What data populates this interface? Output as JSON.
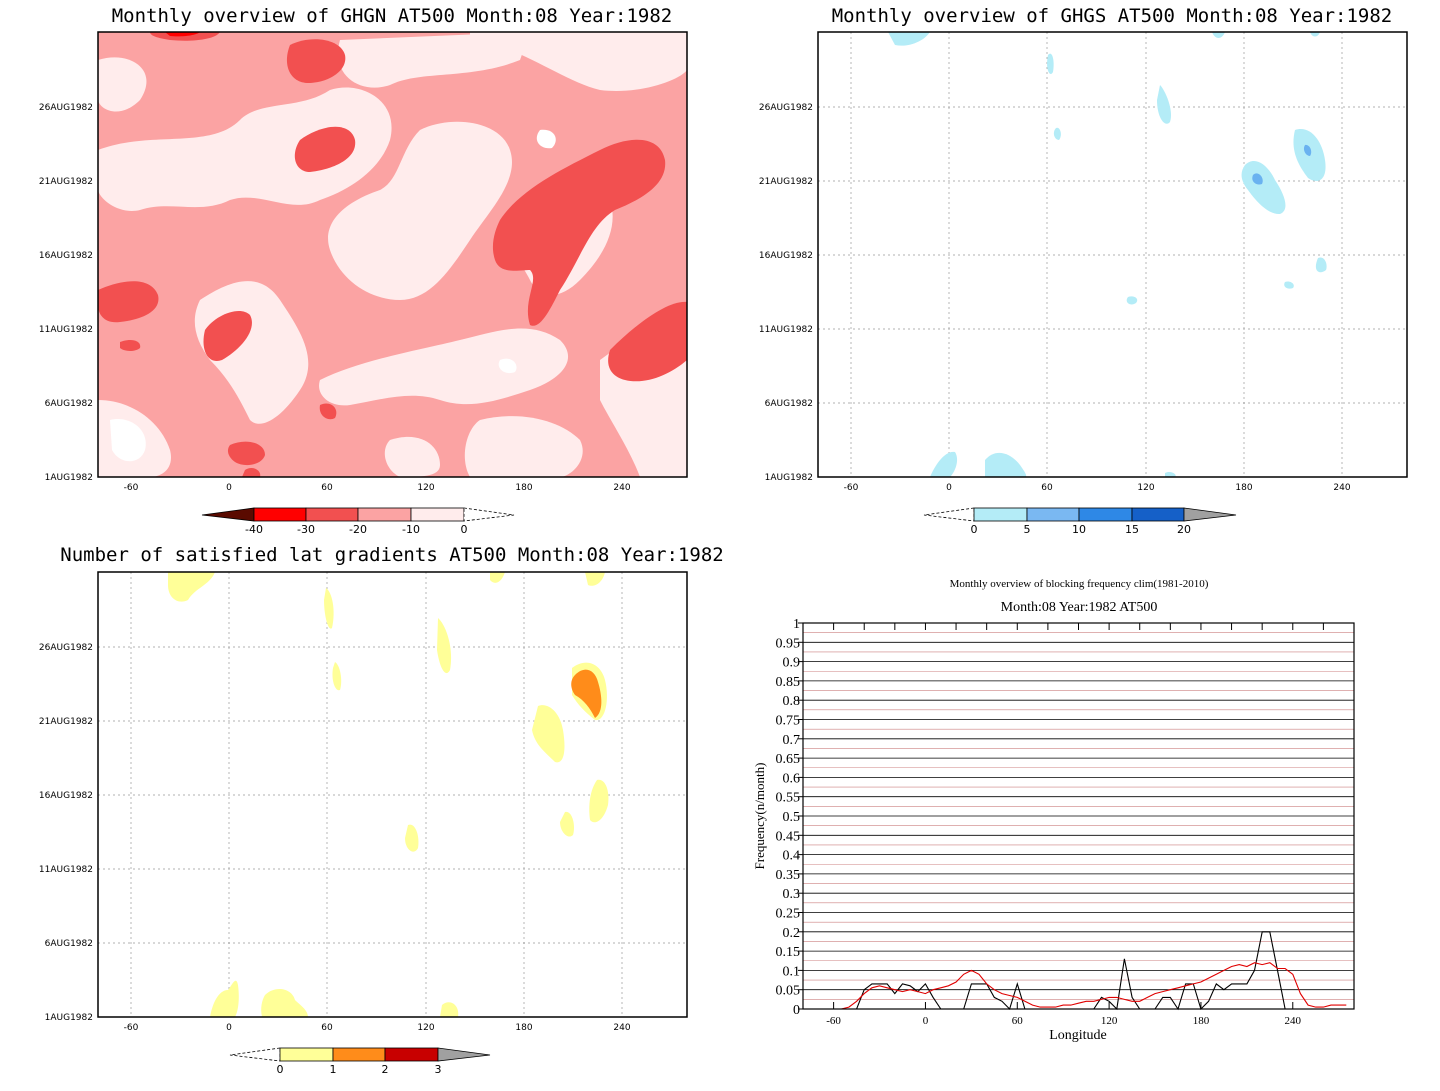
{
  "panels": {
    "ghgn": {
      "title": "Monthly overview of GHGN AT500 Month:08 Year:1982",
      "colorbar": {
        "labels": [
          "-40",
          "-30",
          "-20",
          "-10",
          "0"
        ],
        "colors": [
          "#5a0a00",
          "#ff0000",
          "#f25050",
          "#fba3a3",
          "#ffecec"
        ]
      }
    },
    "ghgs": {
      "title": "Monthly overview of GHGS AT500 Month:08 Year:1982",
      "colorbar": {
        "labels": [
          "0",
          "5",
          "10",
          "15",
          "20"
        ],
        "colors": [
          "#b4ecf7",
          "#7ab8f2",
          "#2e88e6",
          "#1560c8",
          "#a0a0a0"
        ]
      }
    },
    "lat": {
      "title": "Number of satisfied lat gradients AT500 Month:08 Year:1982",
      "colorbar": {
        "labels": [
          "0",
          "1",
          "2",
          "3"
        ],
        "colors": [
          "#ffff98",
          "#ff8c1a",
          "#c80000",
          "#a0a0a0"
        ]
      }
    },
    "freq": {
      "title1": "Monthly overview of blocking frequency clim(1981-2010)",
      "title2": "Month:08 Year:1982  AT500"
    }
  },
  "map_axes": {
    "x_ticks": [
      "-60",
      "0",
      "60",
      "120",
      "180",
      "240"
    ],
    "y_ticks": [
      "1AUG1982",
      "6AUG1982",
      "11AUG1982",
      "16AUG1982",
      "21AUG1982",
      "26AUG1982"
    ]
  },
  "chart_data": {
    "type": "line",
    "title": "Monthly overview of blocking frequency clim(1981-2010)",
    "subtitle": "Month:08 Year:1982  AT500",
    "xlabel": "Longitude",
    "ylabel": "Frequency(n/month)",
    "xlim": [
      -80,
      280
    ],
    "ylim": [
      0,
      1
    ],
    "x_ticks": [
      -60,
      0,
      60,
      120,
      180,
      240
    ],
    "y_ticks": [
      "0",
      "0.05",
      "0.1",
      "0.15",
      "0.2",
      "0.25",
      "0.3",
      "0.35",
      "0.4",
      "0.45",
      "0.5",
      "0.55",
      "0.6",
      "0.65",
      "0.7",
      "0.75",
      "0.8",
      "0.85",
      "0.9",
      "0.95",
      "1"
    ],
    "grid": true,
    "series": [
      {
        "color": "#000000",
        "x": [
          -80,
          -45,
          -40,
          -35,
          -30,
          -25,
          -20,
          -15,
          -10,
          -5,
          0,
          5,
          10,
          15,
          20,
          25,
          30,
          35,
          40,
          45,
          50,
          55,
          60,
          65,
          70,
          75,
          80,
          85,
          90,
          95,
          100,
          105,
          110,
          115,
          120,
          125,
          130,
          135,
          140,
          145,
          150,
          155,
          160,
          165,
          170,
          175,
          180,
          185,
          190,
          195,
          200,
          205,
          210,
          215,
          220,
          225,
          230,
          235,
          240
        ],
        "y": [
          0,
          0,
          0.05,
          0.065,
          0.065,
          0.065,
          0.04,
          0.065,
          0.06,
          0.045,
          0.065,
          0.03,
          0,
          0,
          0,
          0,
          0.065,
          0.065,
          0.065,
          0.03,
          0.02,
          0,
          0.065,
          0,
          0,
          0,
          0,
          0,
          0,
          0,
          0,
          0,
          0,
          0.03,
          0.02,
          0,
          0.13,
          0.03,
          0,
          0,
          0,
          0.03,
          0.03,
          0,
          0.065,
          0.065,
          0,
          0.02,
          0.065,
          0.05,
          0.065,
          0.065,
          0.065,
          0.1,
          0.2,
          0.2,
          0.1,
          0,
          0
        ]
      },
      {
        "color": "#e00000",
        "x": [
          -80,
          -55,
          -50,
          -45,
          -40,
          -35,
          -30,
          -25,
          -20,
          -15,
          -10,
          -5,
          0,
          5,
          10,
          15,
          20,
          25,
          30,
          35,
          40,
          45,
          50,
          55,
          60,
          65,
          70,
          75,
          80,
          85,
          90,
          95,
          100,
          105,
          110,
          115,
          120,
          125,
          130,
          135,
          140,
          145,
          150,
          155,
          160,
          165,
          170,
          175,
          180,
          185,
          190,
          195,
          200,
          205,
          210,
          215,
          220,
          225,
          230,
          235,
          240,
          245,
          250,
          255,
          260,
          265,
          270,
          275
        ],
        "y": [
          0,
          0,
          0.005,
          0.02,
          0.04,
          0.055,
          0.06,
          0.055,
          0.05,
          0.045,
          0.05,
          0.045,
          0.04,
          0.05,
          0.055,
          0.06,
          0.07,
          0.09,
          0.1,
          0.09,
          0.065,
          0.05,
          0.04,
          0.035,
          0.03,
          0.02,
          0.01,
          0.005,
          0.005,
          0.005,
          0.01,
          0.01,
          0.015,
          0.02,
          0.02,
          0.025,
          0.03,
          0.03,
          0.025,
          0.02,
          0.02,
          0.03,
          0.04,
          0.045,
          0.05,
          0.055,
          0.06,
          0.065,
          0.07,
          0.08,
          0.09,
          0.1,
          0.11,
          0.115,
          0.11,
          0.12,
          0.115,
          0.12,
          0.105,
          0.105,
          0.09,
          0.04,
          0.01,
          0.005,
          0.005,
          0.01,
          0.01,
          0.01
        ]
      }
    ]
  }
}
